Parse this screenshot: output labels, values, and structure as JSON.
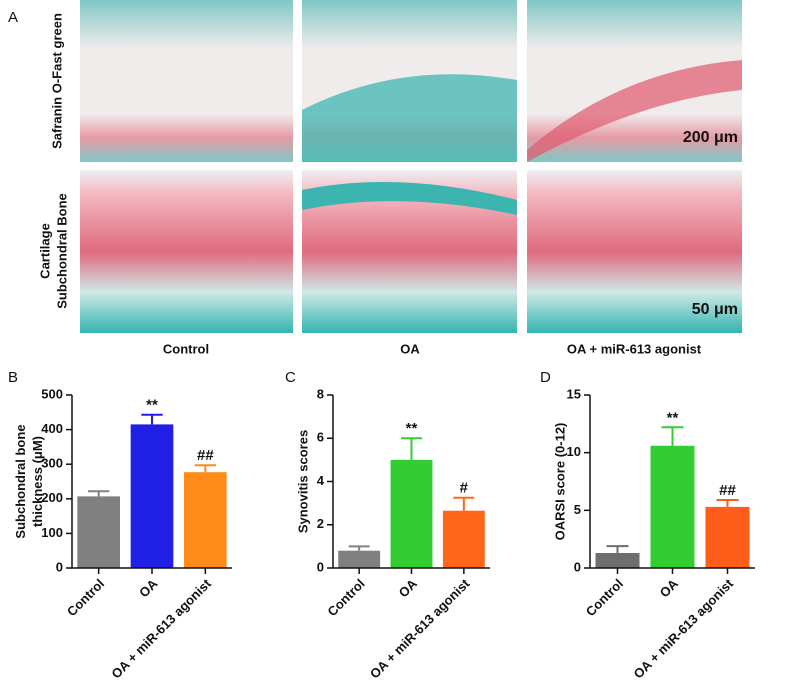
{
  "panel_a": {
    "label": "A",
    "row_labels": [
      [
        "Safranin O-Fast green"
      ],
      [
        "Cartilage",
        "Subchondral Bone"
      ]
    ],
    "column_labels": [
      "Control",
      "OA",
      "OA + miR-613 agonist"
    ],
    "scale_bars": [
      "200 μm",
      "50 μm"
    ]
  },
  "chart_data": [
    {
      "type": "bar",
      "label": "B",
      "ylabel": [
        "Subchondral bone",
        "thickness (μM)"
      ],
      "categories": [
        "Control",
        "OA",
        "OA + miR-613 agonist"
      ],
      "values": [
        207,
        415,
        277
      ],
      "errors": [
        15,
        28,
        20
      ],
      "colors": [
        "#808080",
        "#1f1fe6",
        "#ff8c1a"
      ],
      "annotations": [
        null,
        "**",
        "##"
      ],
      "ylim": [
        0,
        500
      ],
      "yticks": [
        0,
        100,
        200,
        300,
        400,
        500
      ]
    },
    {
      "type": "bar",
      "label": "C",
      "ylabel": [
        "Synovitis scores"
      ],
      "categories": [
        "Control",
        "OA",
        "OA + miR-613 agonist"
      ],
      "values": [
        0.8,
        5.0,
        2.65
      ],
      "errors": [
        0.2,
        1.0,
        0.6
      ],
      "colors": [
        "#808080",
        "#33cc33",
        "#ff661a"
      ],
      "annotations": [
        null,
        "**",
        "#"
      ],
      "ylim": [
        0,
        8
      ],
      "yticks": [
        0,
        2,
        4,
        6,
        8
      ]
    },
    {
      "type": "bar",
      "label": "D",
      "ylabel": [
        "OARSI score (0-12)"
      ],
      "categories": [
        "Control",
        "OA",
        "OA + miR-613 agonist"
      ],
      "values": [
        1.3,
        10.6,
        5.3
      ],
      "errors": [
        0.6,
        1.6,
        0.6
      ],
      "colors": [
        "#6e6e6e",
        "#33cc33",
        "#ff5e1a"
      ],
      "annotations": [
        null,
        "**",
        "##"
      ],
      "ylim": [
        0,
        15
      ],
      "yticks": [
        0,
        5,
        10,
        15
      ]
    }
  ]
}
